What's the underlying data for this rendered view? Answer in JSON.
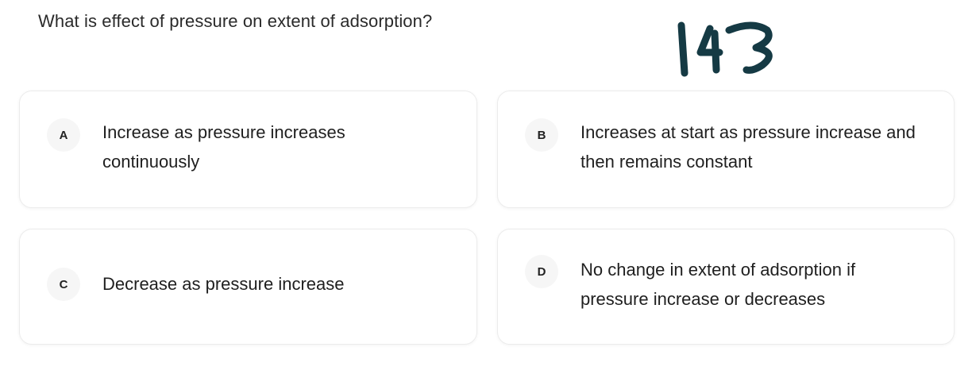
{
  "question": {
    "text": "What is effect of pressure on extent of adsorption?"
  },
  "annotation": {
    "text": "143",
    "color": "#153a44"
  },
  "options": [
    {
      "letter": "A",
      "text": "Increase as pressure increases continuously"
    },
    {
      "letter": "B",
      "text": "Increases at start as pressure increase and then remains constant"
    },
    {
      "letter": "C",
      "text": "Decrease as pressure increase"
    },
    {
      "letter": "D",
      "text": "No change in extent of adsorption if pressure increase or decreases"
    }
  ]
}
